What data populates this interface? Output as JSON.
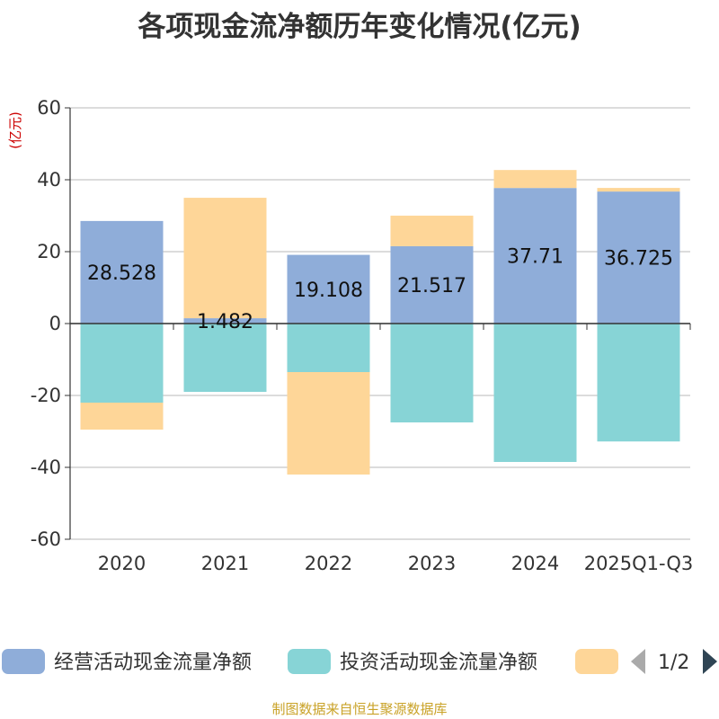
{
  "title": "各项现金流净额历年变化情况(亿元)",
  "source": "制图数据来自恒生聚源数据库",
  "chart_data": {
    "type": "bar",
    "stacked": true,
    "title": "各项现金流净额历年变化情况(亿元)",
    "ylabel": "(亿元)",
    "xlabel": "",
    "ylim": [
      -60,
      60
    ],
    "yticks": [
      60,
      40,
      20,
      0,
      -20,
      -40,
      -60
    ],
    "grid": true,
    "categories": [
      "2020",
      "2021",
      "2022",
      "2023",
      "2024",
      "2025Q1-Q3"
    ],
    "series": [
      {
        "name": "经营活动现金流量净额",
        "color": "#8fadd9",
        "values": [
          28.528,
          1.482,
          19.108,
          21.517,
          37.71,
          36.725
        ],
        "labels": [
          "28.528",
          "1.482",
          "19.108",
          "21.517",
          "37.71",
          "36.725"
        ]
      },
      {
        "name": "投资活动现金流量净额",
        "color": "#87d4d6",
        "values": [
          -22.0,
          -19.0,
          -13.5,
          -27.5,
          -38.5,
          -32.8
        ]
      },
      {
        "name": "",
        "color": "#fed698",
        "values": [
          -7.5,
          33.5,
          -28.5,
          8.5,
          5.0,
          1.0
        ]
      }
    ],
    "legend": {
      "position": "bottom",
      "page": "1/2"
    }
  }
}
